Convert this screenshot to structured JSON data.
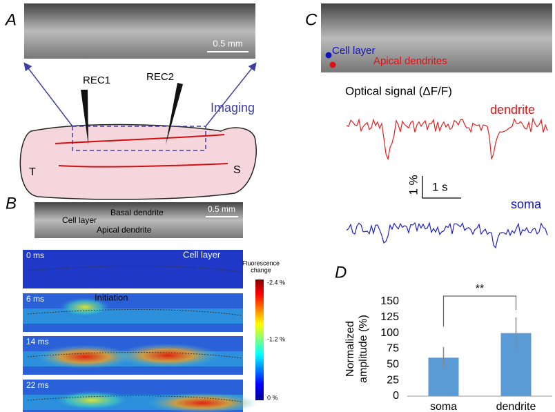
{
  "panels": {
    "A": {
      "label": "A",
      "scale_bar": "0.5 mm",
      "electrodes": [
        "REC1",
        "REC2"
      ],
      "imaging": "Imaging",
      "ends": [
        "T",
        "S"
      ]
    },
    "B": {
      "label": "B",
      "regions": [
        "Basal dendrite",
        "Cell layer",
        "Apical dendrite"
      ],
      "scale_bar": "0.5 mm",
      "frames": [
        "0 ms",
        "6 ms",
        "14 ms",
        "22 ms"
      ],
      "annotations": [
        "Cell layer",
        "Initiation"
      ],
      "colorbar": {
        "title": [
          "Fluorescence",
          "change"
        ],
        "ticks": [
          "-2.4 %",
          "-1.2 %",
          "0 %"
        ]
      }
    },
    "C": {
      "label": "C",
      "points": [
        "Cell layer",
        "Apical dendrites"
      ],
      "title": "Optical signal (ΔF/F)",
      "traces": [
        "dendrite",
        "soma"
      ],
      "scale": [
        "1 %",
        "1 s"
      ]
    },
    "D": {
      "label": "D"
    }
  },
  "chart_data": {
    "type": "bar",
    "y_label": [
      "Normalized",
      "amplitude (%)"
    ],
    "categories": [
      "soma",
      "dendrite"
    ],
    "values": [
      61,
      100
    ],
    "errors": [
      17,
      25
    ],
    "color": "#5b9bd5",
    "ylim": [
      0,
      150
    ],
    "yticks": [
      0,
      25,
      50,
      75,
      100,
      125,
      150
    ],
    "annotation": "**"
  }
}
